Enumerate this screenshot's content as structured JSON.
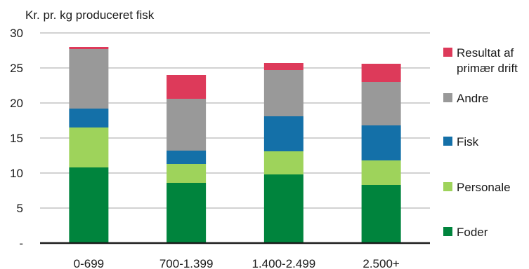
{
  "chart_data": {
    "type": "bar",
    "stacked": true,
    "ylabel": "Kr. pr. kg produceret fisk",
    "ylim": [
      0,
      30
    ],
    "yticks": [
      "-",
      "5",
      "10",
      "15",
      "20",
      "25",
      "30"
    ],
    "grid": true,
    "legend_position": "right",
    "categories": [
      "0-699",
      "700-1.399",
      "1.400-2.499",
      "2.500+"
    ],
    "series": [
      {
        "name": "Foder",
        "color": "#00843d",
        "values": [
          10.8,
          8.6,
          9.8,
          8.3
        ]
      },
      {
        "name": "Personale",
        "color": "#9ed35b",
        "values": [
          5.7,
          2.7,
          3.3,
          3.5
        ]
      },
      {
        "name": "Fisk",
        "color": "#1470a8",
        "values": [
          2.7,
          1.9,
          5.0,
          5.0
        ]
      },
      {
        "name": "Andre",
        "color": "#999999",
        "values": [
          8.5,
          7.4,
          6.6,
          6.2
        ]
      },
      {
        "name": "Resultat af primær drift",
        "legend_lines": [
          "Resultat af",
          "primær drift"
        ],
        "color": "#dd3a5a",
        "values": [
          0.3,
          3.4,
          1.0,
          2.6
        ]
      }
    ]
  }
}
